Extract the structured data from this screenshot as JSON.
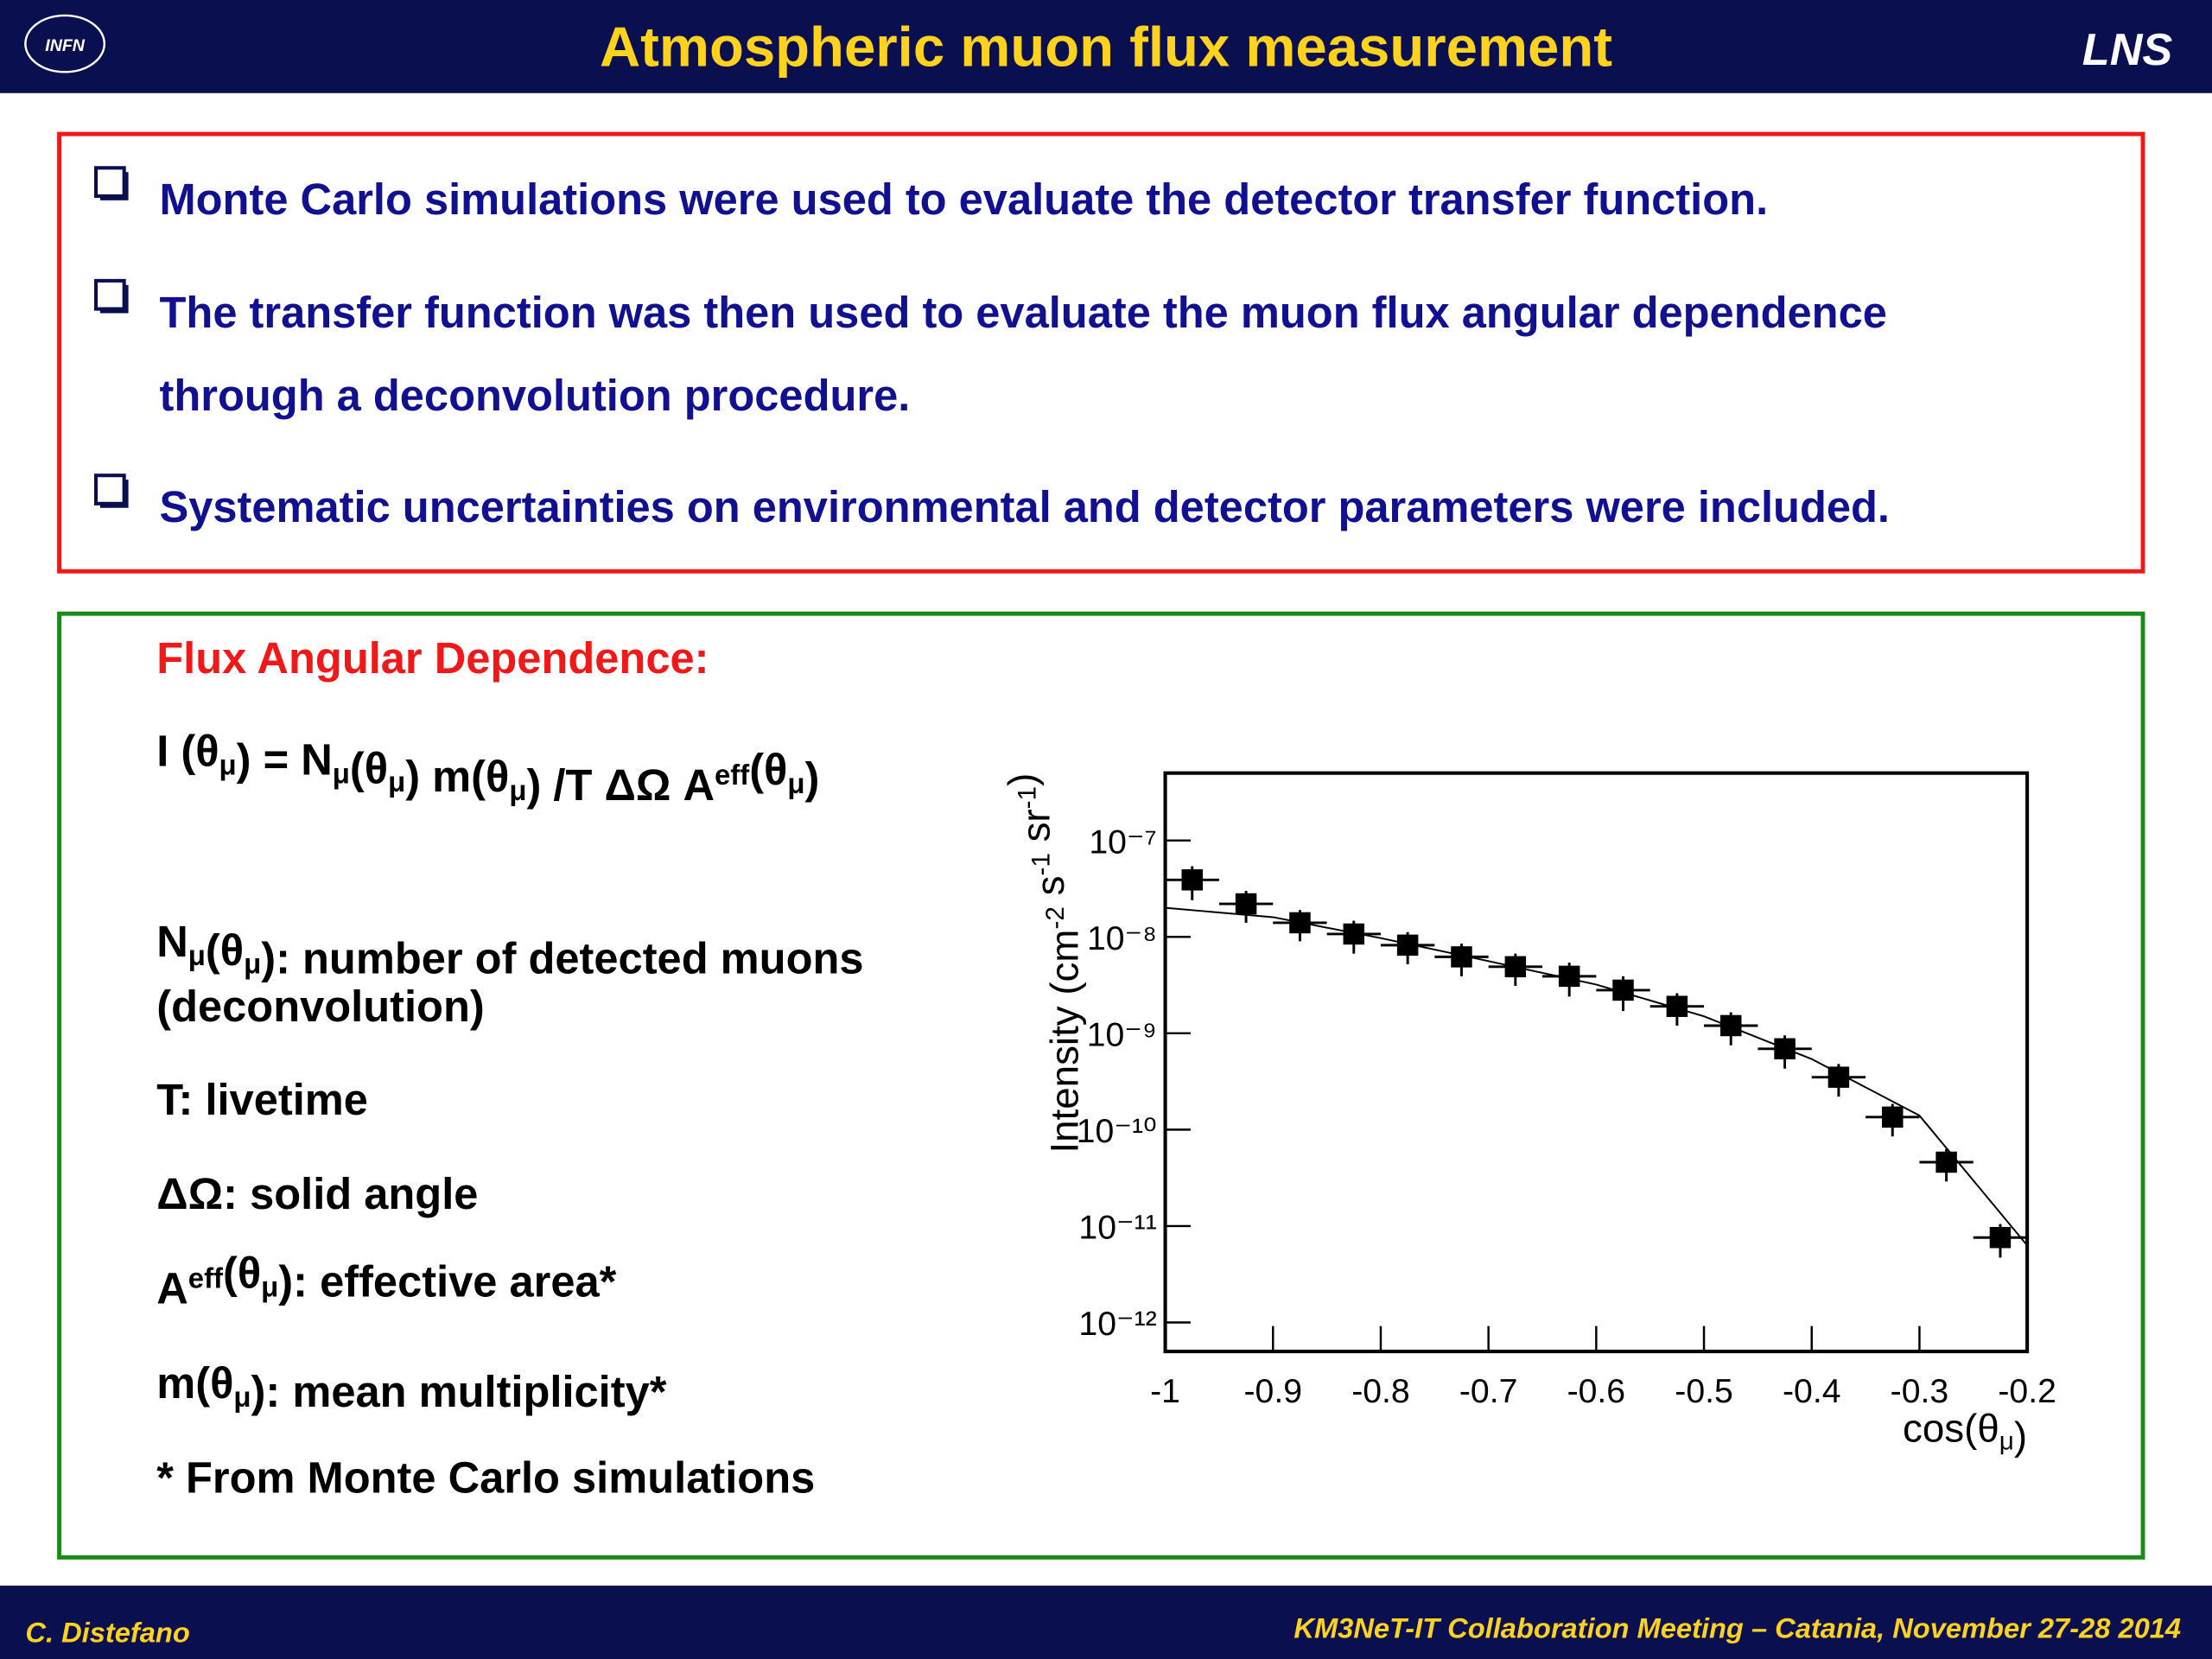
{
  "header": {
    "logo": "INFN",
    "title": "Atmospheric muon flux measurement",
    "lab": "LNS"
  },
  "bullets": [
    [
      "Monte Carlo simulations were used to evaluate the detector transfer function."
    ],
    [
      " The transfer function was then used to evaluate the muon flux angular dependence",
      "through a deconvolution procedure."
    ],
    [
      "Systematic uncertainties on environmental and detector parameters were included."
    ]
  ],
  "panel": {
    "heading": "Flux Angular Dependence:",
    "formula": [
      "I (θ",
      {
        "sub": "μ"
      },
      ") = N",
      {
        "sub": "μ"
      },
      "(θ",
      {
        "sub": "μ"
      },
      ") m(θ",
      {
        "sub": "μ"
      },
      ") /T ΔΩ A",
      {
        "sup": "eff"
      },
      "(θ",
      {
        "sub": "μ"
      },
      ")"
    ],
    "lines": [
      [
        "N",
        {
          "sub": "μ"
        },
        "(θ",
        {
          "sub": "μ"
        },
        "): number of detected muons"
      ],
      [
        "(deconvolution)"
      ],
      [
        "T: livetime"
      ],
      [
        "ΔΩ: solid angle"
      ],
      [
        "A",
        {
          "sup": "eff"
        },
        "(θ",
        {
          "sub": "μ"
        },
        "): effective area*"
      ],
      [
        "m(θ",
        {
          "sub": "μ"
        },
        "): mean multiplicity*"
      ],
      [
        "* From Monte Carlo simulations"
      ]
    ]
  },
  "footer": {
    "author": "C. Distefano",
    "event": "KM3NeT-IT Collaboration Meeting – Catania, November 27-28 2014"
  },
  "chart_data": {
    "type": "scatter",
    "log_y": true,
    "x_label": [
      "cos(θ",
      {
        "sub": "μ"
      },
      ")"
    ],
    "y_label": [
      "Intensity (cm",
      {
        "sup": "-2"
      },
      " s",
      {
        "sup": "-1"
      },
      " sr",
      {
        "sup": "-1"
      },
      ")"
    ],
    "xlim": [
      -1,
      -0.2
    ],
    "ylim": [
      5e-13,
      5e-07
    ],
    "xticks": [
      -1,
      -0.9,
      -0.8,
      -0.7,
      -0.6,
      -0.5,
      -0.4,
      -0.3,
      -0.2
    ],
    "yticks": [
      {
        "value": 1e-12,
        "label": "10⁻¹²"
      },
      {
        "value": 1e-11,
        "label": "10⁻¹¹"
      },
      {
        "value": 1e-10,
        "label": "10⁻¹⁰"
      },
      {
        "value": 1e-09,
        "label": "10⁻⁹"
      },
      {
        "value": 1e-08,
        "label": "10⁻⁸"
      },
      {
        "value": 1e-07,
        "label": "10⁻⁷"
      }
    ],
    "series": [
      {
        "color": "#000000",
        "x": [
          -0.975,
          -0.925,
          -0.875,
          -0.825,
          -0.775,
          -0.725,
          -0.675,
          -0.625,
          -0.575,
          -0.525,
          -0.475,
          -0.425,
          -0.375,
          -0.325,
          -0.275,
          -0.225
        ],
        "values": [
          3.9e-08,
          2.2e-08,
          1.4e-08,
          1.07e-08,
          8.2e-09,
          6.2e-09,
          4.9e-09,
          3.9e-09,
          2.8e-09,
          1.9e-09,
          1.2e-09,
          6.9e-10,
          3.5e-10,
          1.35e-10,
          4.6e-11,
          7.6e-12
        ],
        "xerr": [
          0.025,
          0.025,
          0.025,
          0.025,
          0.025,
          0.025,
          0.025,
          0.025,
          0.025,
          0.025,
          0.025,
          0.025,
          0.025,
          0.025,
          0.025,
          0.025
        ],
        "yerr": [
          1.5e-08,
          8e-09,
          5e-09,
          4e-09,
          3e-09,
          2.3e-09,
          1.8e-09,
          1.5e-09,
          1.1e-09,
          7e-10,
          4.5e-10,
          2.6e-10,
          1.3e-10,
          5e-11,
          1.7e-11,
          2.9e-12
        ]
      },
      {
        "type": "line",
        "color": "#000000",
        "x": [
          -1,
          -0.9,
          -0.8,
          -0.7,
          -0.6,
          -0.5,
          -0.4,
          -0.3,
          -0.2
        ],
        "values": [
          2e-08,
          1.6e-08,
          9.7e-09,
          5.6e-09,
          3.2e-09,
          1.5e-09,
          5.4e-10,
          1.4e-10,
          6.3e-12
        ]
      }
    ]
  }
}
